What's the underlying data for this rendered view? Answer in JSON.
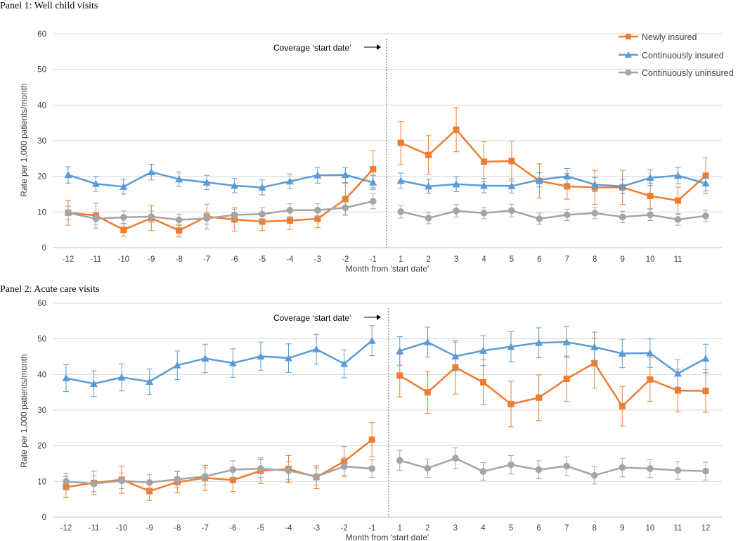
{
  "colors": {
    "newly": "#ED7D31",
    "continuous": "#5B9BD5",
    "uninsured": "#A5A5A5",
    "grid": "#D9D9D9"
  },
  "legend": [
    {
      "name": "Newly insured",
      "marker": "square"
    },
    {
      "name": "Continuously insured",
      "marker": "triangle"
    },
    {
      "name": "Continuously uninsured",
      "marker": "circle"
    }
  ],
  "chart_data": [
    {
      "type": "line",
      "title": "Panel 1: Well child visits",
      "xlabel": "Month from 'start date'",
      "ylabel": "Rate per 1,000 patients/month",
      "annotation": "Coverage ‘start date’",
      "ylim": [
        0,
        60
      ],
      "yticks": [
        "0",
        "10",
        "20",
        "30",
        "40",
        "50",
        "60"
      ],
      "categories": [
        "-12",
        "-11",
        "-10",
        "-9",
        "-8",
        "-7",
        "-6",
        "-5",
        "-4",
        "-3",
        "-2",
        "-1",
        "1",
        "2",
        "3",
        "4",
        "5",
        "6",
        "7",
        "8",
        "9",
        "10",
        "11",
        ""
      ],
      "series": [
        {
          "name": "Newly insured",
          "values": [
            9.8,
            9.0,
            5.0,
            8.3,
            4.8,
            8.7,
            7.9,
            7.3,
            7.6,
            8.1,
            13.6,
            22.0,
            29.4,
            26.0,
            33.1,
            24.1,
            24.3,
            18.7,
            17.2,
            16.9,
            16.9,
            14.5,
            13.2,
            20.2
          ],
          "err": [
            3.5,
            3.5,
            1.8,
            3.5,
            1.8,
            3.5,
            3.3,
            2.5,
            2.5,
            2.5,
            4.5,
            5.2,
            6.0,
            5.4,
            6.2,
            5.6,
            5.6,
            4.8,
            3.6,
            4.8,
            4.8,
            3.6,
            3.8,
            5.0
          ]
        },
        {
          "name": "Continuously insured",
          "values": [
            20.4,
            17.9,
            17.1,
            21.2,
            19.2,
            18.3,
            17.4,
            16.9,
            18.6,
            20.3,
            20.4,
            18.3,
            18.8,
            17.2,
            17.8,
            17.4,
            17.3,
            19.0,
            20.0,
            17.7,
            17.2,
            19.6,
            20.2,
            18.0
          ],
          "err": [
            2.3,
            2.1,
            2.1,
            2.2,
            2.0,
            2.0,
            2.0,
            2.1,
            2.1,
            2.2,
            2.1,
            2.0,
            2.1,
            2.0,
            2.1,
            2.0,
            2.0,
            2.0,
            2.2,
            2.0,
            2.0,
            2.2,
            2.3,
            2.0
          ]
        },
        {
          "name": "Continuously uninsured",
          "values": [
            9.8,
            8.1,
            8.5,
            8.7,
            7.8,
            8.2,
            9.2,
            9.4,
            10.5,
            10.5,
            11.2,
            13.0,
            10.1,
            8.3,
            10.3,
            9.7,
            10.4,
            8.1,
            9.2,
            9.7,
            8.6,
            9.2,
            7.9,
            8.9
          ],
          "err": [
            1.8,
            1.6,
            1.8,
            1.6,
            1.6,
            1.6,
            1.6,
            1.8,
            1.8,
            1.8,
            2.0,
            2.1,
            1.8,
            1.6,
            1.8,
            1.6,
            1.8,
            1.6,
            1.6,
            1.6,
            1.6,
            1.6,
            1.6,
            1.6
          ]
        }
      ]
    },
    {
      "type": "line",
      "title": "Panel 2: Acute care visits",
      "xlabel": "Month from 'start date'",
      "ylabel": "Rate per 1,000 patients/month",
      "annotation": "Coverage ‘start date’",
      "ylim": [
        0,
        60
      ],
      "yticks": [
        "0",
        "10",
        "20",
        "30",
        "40",
        "50",
        "60"
      ],
      "categories": [
        "-12",
        "-11",
        "-10",
        "-9",
        "-8",
        "-7",
        "-6",
        "-5",
        "-4",
        "-3",
        "-2",
        "-1",
        "1",
        "2",
        "3",
        "4",
        "5",
        "6",
        "7",
        "8",
        "9",
        "10",
        "11",
        "12"
      ],
      "series": [
        {
          "name": "Newly insured",
          "values": [
            8.4,
            9.6,
            10.5,
            7.3,
            9.8,
            11.0,
            10.4,
            13.0,
            13.5,
            11.2,
            15.6,
            21.7,
            39.7,
            35.0,
            42.0,
            37.8,
            31.7,
            33.5,
            38.8,
            43.2,
            31.1,
            38.6,
            35.5,
            35.4
          ],
          "err": [
            3.0,
            3.3,
            3.8,
            2.6,
            3.0,
            3.5,
            3.2,
            3.6,
            3.8,
            3.2,
            4.2,
            4.8,
            6.0,
            5.9,
            7.5,
            6.3,
            6.4,
            6.4,
            6.4,
            7.0,
            5.6,
            6.2,
            6.0,
            6.0
          ]
        },
        {
          "name": "Continuously insured",
          "values": [
            39.0,
            37.4,
            39.2,
            38.0,
            42.6,
            44.5,
            43.2,
            45.1,
            44.6,
            47.1,
            43.0,
            49.5,
            46.6,
            49.1,
            45.1,
            46.7,
            47.8,
            48.9,
            49.1,
            47.7,
            45.9,
            46.0,
            40.3,
            44.5
          ],
          "err": [
            3.8,
            3.6,
            3.8,
            3.6,
            4.0,
            4.0,
            4.0,
            4.0,
            4.0,
            4.2,
            3.9,
            4.2,
            4.0,
            4.2,
            4.0,
            4.2,
            4.2,
            4.2,
            4.3,
            4.2,
            4.0,
            4.0,
            3.8,
            4.0
          ]
        },
        {
          "name": "Continuously uninsured",
          "values": [
            10.0,
            9.4,
            10.2,
            9.7,
            10.6,
            11.4,
            13.3,
            13.6,
            13.0,
            11.4,
            14.2,
            13.6,
            15.9,
            13.7,
            16.5,
            12.8,
            14.7,
            13.3,
            14.3,
            11.7,
            13.9,
            13.6,
            13.1,
            12.9
          ],
          "err": [
            2.3,
            2.2,
            2.2,
            2.2,
            2.3,
            2.4,
            2.5,
            2.5,
            2.5,
            2.4,
            2.6,
            2.5,
            2.8,
            2.6,
            2.9,
            2.5,
            2.6,
            2.5,
            2.6,
            2.4,
            2.6,
            2.5,
            2.5,
            2.5
          ]
        }
      ]
    }
  ]
}
